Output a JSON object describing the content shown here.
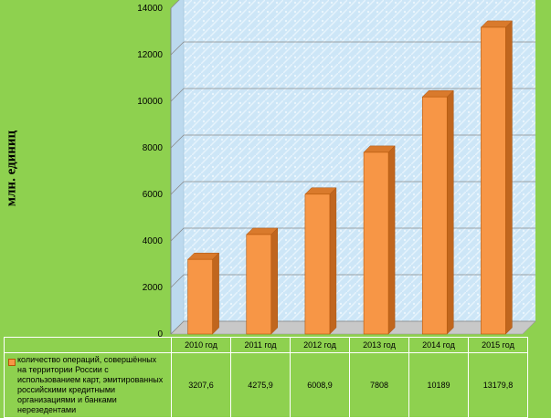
{
  "chart_data": {
    "type": "bar",
    "ylabel": "млн. единиц",
    "ylim": [
      0,
      14000
    ],
    "yticks": [
      0,
      2000,
      4000,
      6000,
      8000,
      10000,
      12000,
      14000
    ],
    "categories": [
      "2010 год",
      "2011 год",
      "2012 год",
      "2013 год",
      "2014 год",
      "2015 год"
    ],
    "series": [
      {
        "name": "количество операций, совершённых на территории России с использованием карт, эмитированных российскими кредитными организациями и банками нерезедентами",
        "values": [
          3207.6,
          4275.9,
          6008.9,
          7808,
          10189,
          13179.8
        ],
        "labels": [
          "3207,6",
          "4275,9",
          "6008,9",
          "7808",
          "10189",
          "13179,8"
        ],
        "color": "#f79646"
      }
    ],
    "grid": true,
    "legend": "data-table"
  }
}
